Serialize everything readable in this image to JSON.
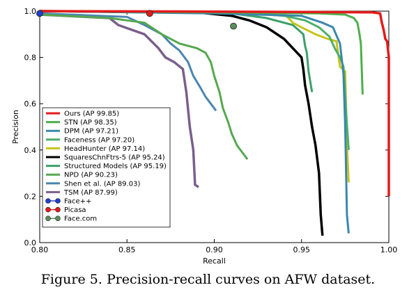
{
  "caption": "Figure 5. Precision-recall curves on AFW dataset.",
  "chart_data": {
    "type": "line",
    "title": "",
    "xlabel": "Recall",
    "ylabel": "Precision",
    "xlim": [
      0.8,
      1.0
    ],
    "ylim": [
      0.0,
      1.0
    ],
    "xticks": [
      "0.80",
      "0.85",
      "0.90",
      "0.95",
      "1.00"
    ],
    "yticks": [
      "0.0",
      "0.2",
      "0.4",
      "0.6",
      "0.8",
      "1.0"
    ],
    "grid": false,
    "legend_position": "lower-left",
    "series": [
      {
        "name": "Ours (AP 99.85)",
        "color": "#e41a1c",
        "width": 3.5,
        "points": [
          [
            0.8,
            1.0
          ],
          [
            0.9,
            0.998
          ],
          [
            0.99,
            0.995
          ],
          [
            0.995,
            0.99
          ],
          [
            0.996,
            0.95
          ],
          [
            0.997,
            0.92
          ],
          [
            0.998,
            0.88
          ],
          [
            0.999,
            0.87
          ],
          [
            1.0,
            0.8
          ],
          [
            1.0,
            0.2
          ]
        ]
      },
      {
        "name": "STN (AP 98.35)",
        "color": "#4daf4a",
        "width": 3,
        "points": [
          [
            0.8,
            1.0
          ],
          [
            0.9,
            0.995
          ],
          [
            0.96,
            0.99
          ],
          [
            0.975,
            0.985
          ],
          [
            0.98,
            0.97
          ],
          [
            0.982,
            0.95
          ],
          [
            0.983,
            0.91
          ],
          [
            0.984,
            0.86
          ],
          [
            0.985,
            0.64
          ]
        ]
      },
      {
        "name": "DPM (AP 97.21)",
        "color": "#3a87ad",
        "width": 3,
        "points": [
          [
            0.8,
            1.0
          ],
          [
            0.9,
            0.99
          ],
          [
            0.95,
            0.98
          ],
          [
            0.962,
            0.95
          ],
          [
            0.968,
            0.93
          ],
          [
            0.972,
            0.86
          ],
          [
            0.974,
            0.73
          ],
          [
            0.975,
            0.5
          ],
          [
            0.976,
            0.12
          ],
          [
            0.977,
            0.04
          ]
        ]
      },
      {
        "name": "Faceness (AP 97.20)",
        "color": "#4caf6a",
        "width": 3,
        "points": [
          [
            0.8,
            1.0
          ],
          [
            0.92,
            0.99
          ],
          [
            0.94,
            0.98
          ],
          [
            0.952,
            0.96
          ],
          [
            0.96,
            0.93
          ],
          [
            0.966,
            0.89
          ],
          [
            0.969,
            0.84
          ],
          [
            0.972,
            0.8
          ],
          [
            0.974,
            0.76
          ],
          [
            0.976,
            0.51
          ],
          [
            0.977,
            0.4
          ]
        ]
      },
      {
        "name": "HeadHunter (AP 97.14)",
        "color": "#c7c31a",
        "width": 3,
        "points": [
          [
            0.8,
            1.0
          ],
          [
            0.94,
            0.99
          ],
          [
            0.945,
            0.95
          ],
          [
            0.95,
            0.93
          ],
          [
            0.958,
            0.9
          ],
          [
            0.965,
            0.88
          ],
          [
            0.97,
            0.87
          ],
          [
            0.972,
            0.76
          ],
          [
            0.975,
            0.74
          ],
          [
            0.976,
            0.42
          ],
          [
            0.977,
            0.26
          ]
        ]
      },
      {
        "name": "SquaresChnFtrs-5 (AP 95.24)",
        "color": "#000000",
        "width": 3.5,
        "points": [
          [
            0.8,
            1.0
          ],
          [
            0.89,
            0.995
          ],
          [
            0.91,
            0.98
          ],
          [
            0.92,
            0.96
          ],
          [
            0.93,
            0.93
          ],
          [
            0.94,
            0.88
          ],
          [
            0.945,
            0.84
          ],
          [
            0.95,
            0.8
          ],
          [
            0.951,
            0.75
          ],
          [
            0.952,
            0.68
          ],
          [
            0.954,
            0.6
          ],
          [
            0.956,
            0.5
          ],
          [
            0.958,
            0.42
          ],
          [
            0.96,
            0.3
          ],
          [
            0.961,
            0.12
          ],
          [
            0.962,
            0.03
          ]
        ]
      },
      {
        "name": "Structured Models (AP 95.19)",
        "color": "#3aa06a",
        "width": 3,
        "points": [
          [
            0.8,
            1.0
          ],
          [
            0.91,
            0.99
          ],
          [
            0.93,
            0.97
          ],
          [
            0.945,
            0.94
          ],
          [
            0.951,
            0.9
          ],
          [
            0.952,
            0.85
          ],
          [
            0.953,
            0.82
          ],
          [
            0.954,
            0.74
          ],
          [
            0.956,
            0.65
          ]
        ]
      },
      {
        "name": "NPD (AP 90.23)",
        "color": "#55a84f",
        "width": 3,
        "points": [
          [
            0.8,
            0.985
          ],
          [
            0.84,
            0.97
          ],
          [
            0.86,
            0.95
          ],
          [
            0.87,
            0.9
          ],
          [
            0.88,
            0.86
          ],
          [
            0.89,
            0.84
          ],
          [
            0.895,
            0.82
          ],
          [
            0.898,
            0.78
          ],
          [
            0.9,
            0.72
          ],
          [
            0.903,
            0.65
          ],
          [
            0.905,
            0.58
          ],
          [
            0.908,
            0.52
          ],
          [
            0.91,
            0.47
          ],
          [
            0.913,
            0.42
          ],
          [
            0.917,
            0.38
          ],
          [
            0.919,
            0.36
          ]
        ]
      },
      {
        "name": "Shen et al. (AP 89.03)",
        "color": "#4a86b0",
        "width": 3,
        "points": [
          [
            0.8,
            0.99
          ],
          [
            0.85,
            0.975
          ],
          [
            0.86,
            0.94
          ],
          [
            0.87,
            0.9
          ],
          [
            0.875,
            0.86
          ],
          [
            0.88,
            0.83
          ],
          [
            0.885,
            0.78
          ],
          [
            0.888,
            0.72
          ],
          [
            0.892,
            0.67
          ],
          [
            0.895,
            0.63
          ],
          [
            0.898,
            0.6
          ],
          [
            0.901,
            0.57
          ]
        ]
      },
      {
        "name": "TSM (AP 87.99)",
        "color": "#7a5f8c",
        "width": 3.5,
        "points": [
          [
            0.8,
            0.985
          ],
          [
            0.84,
            0.97
          ],
          [
            0.845,
            0.94
          ],
          [
            0.86,
            0.9
          ],
          [
            0.868,
            0.84
          ],
          [
            0.872,
            0.8
          ],
          [
            0.877,
            0.78
          ],
          [
            0.882,
            0.75
          ],
          [
            0.884,
            0.65
          ],
          [
            0.886,
            0.5
          ],
          [
            0.888,
            0.4
          ],
          [
            0.889,
            0.25
          ],
          [
            0.891,
            0.24
          ]
        ]
      }
    ],
    "markers": [
      {
        "name": "Face++",
        "color": "#1f3fd0",
        "x": 0.8,
        "y": 0.99
      },
      {
        "name": "Picasa",
        "color": "#e41a1c",
        "x": 0.863,
        "y": 0.99
      },
      {
        "name": "Face.com",
        "color": "#5a8f5a",
        "x": 0.911,
        "y": 0.935
      }
    ]
  }
}
